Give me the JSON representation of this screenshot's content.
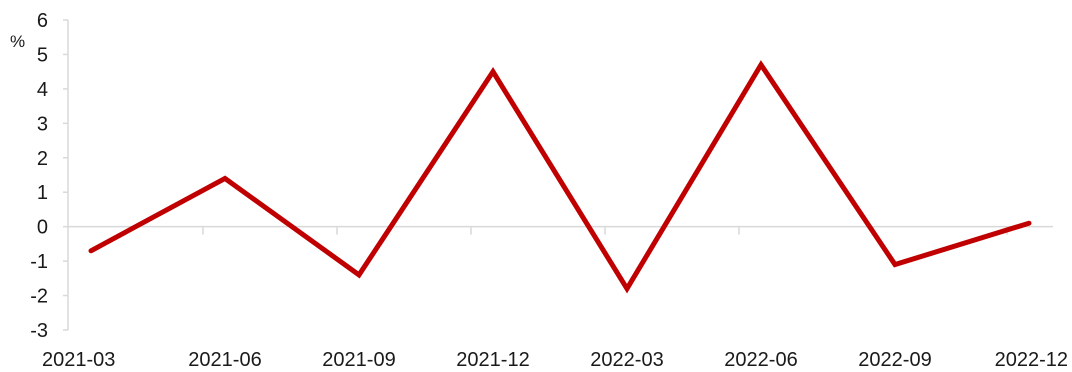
{
  "chart_data": {
    "type": "line",
    "unit_label": "%",
    "categories": [
      "2021-03",
      "2021-06",
      "2021-09",
      "2021-12",
      "2022-03",
      "2022-06",
      "2022-09",
      "2022-12"
    ],
    "series": [
      {
        "values": [
          -0.7,
          1.4,
          -1.4,
          4.5,
          -1.8,
          4.7,
          -1.1,
          0.1
        ],
        "color": "#c00000"
      }
    ],
    "ylim": [
      -3,
      6
    ],
    "yticks": [
      -3,
      -2,
      -1,
      0,
      1,
      2,
      3,
      4,
      5,
      6
    ],
    "ytick_labels": [
      "-3",
      "-2",
      "-1",
      "0",
      "1",
      "2",
      "3",
      "4",
      "5",
      "6"
    ],
    "grid": false,
    "legend": "none",
    "axis_color": "#d9d9d9"
  }
}
